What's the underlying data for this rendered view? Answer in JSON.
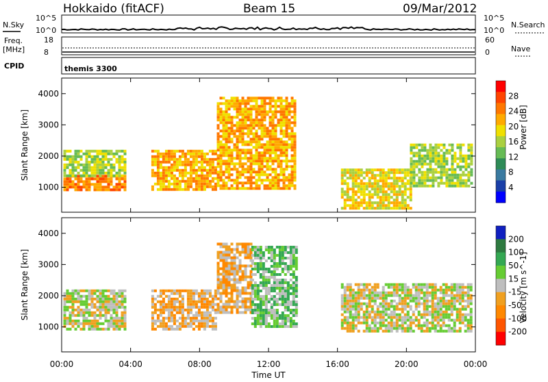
{
  "header": {
    "station": "Hokkaido (fitACF)",
    "beam": "Beam 15",
    "date": "09/Mar/2012"
  },
  "strip": {
    "nsky_label": "N.Sky",
    "nsky_ticks": [
      "10^5",
      "10^0"
    ],
    "nsearch_label": "N.Search",
    "nsearch_ticks": [
      "10^5",
      "10^0"
    ],
    "freq_label_1": "Freq.",
    "freq_label_2": "[MHz]",
    "freq_ticks": [
      "18",
      "8"
    ],
    "nave_label": "Nave",
    "nave_ticks": [
      "60",
      "0"
    ],
    "cpid_label": "CPID",
    "cpid_value": "themis 3300"
  },
  "chart_data": [
    {
      "type": "heatmap",
      "panel": "power",
      "ylabel": "Slant Range [km]",
      "y_ticks": [
        1000,
        2000,
        3000,
        4000
      ],
      "ylim": [
        200,
        4500
      ],
      "colorbar_label": "Power [dB]",
      "colorbar_ticks": [
        4,
        8,
        12,
        16,
        20,
        24,
        28
      ],
      "colorbar_colors": [
        "#0000ff",
        "#1a3fa8",
        "#3a7aa0",
        "#2e8b57",
        "#66bb55",
        "#aad040",
        "#f0e000",
        "#ffaa00",
        "#ff7700",
        "#ff4400",
        "#ff0000"
      ],
      "regions": [
        {
          "t": [
            0.1,
            3.6
          ],
          "r": [
            900,
            1400
          ],
          "level": 24
        },
        {
          "t": [
            0.1,
            3.6
          ],
          "r": [
            1400,
            2200
          ],
          "level": 14
        },
        {
          "t": [
            5.2,
            9.0
          ],
          "r": [
            900,
            2200
          ],
          "level": 22
        },
        {
          "t": [
            9.0,
            13.6
          ],
          "r": [
            1000,
            3900
          ],
          "level": 20
        },
        {
          "t": [
            16.2,
            20.2
          ],
          "r": [
            300,
            1600
          ],
          "level": 18
        },
        {
          "t": [
            20.2,
            23.8
          ],
          "r": [
            1000,
            2400
          ],
          "level": 16
        }
      ]
    },
    {
      "type": "heatmap",
      "panel": "velocity",
      "ylabel": "Slant Range [km]",
      "y_ticks": [
        1000,
        2000,
        3000,
        4000
      ],
      "ylim": [
        200,
        4500
      ],
      "colorbar_label": "Velocity [m s^-1]",
      "colorbar_ticks": [
        200,
        100,
        50,
        15,
        -15,
        -50,
        -100,
        -200
      ],
      "colorbar_colors": [
        "#1020c0",
        "#2e7a40",
        "#34a853",
        "#66cc33",
        "#bebebe",
        "#f0a020",
        "#ff8800",
        "#ff5500",
        "#ff0000"
      ],
      "regions": [
        {
          "t": [
            0.1,
            3.6
          ],
          "r": [
            900,
            2200
          ],
          "level": 0
        },
        {
          "t": [
            5.2,
            9.0
          ],
          "r": [
            900,
            2200
          ],
          "level": -30
        },
        {
          "t": [
            9.0,
            11.0
          ],
          "r": [
            1500,
            3700
          ],
          "level": -40
        },
        {
          "t": [
            11.0,
            13.6
          ],
          "r": [
            1000,
            3600
          ],
          "level": 40
        },
        {
          "t": [
            16.2,
            23.8
          ],
          "r": [
            900,
            2400
          ],
          "level": 0
        }
      ]
    }
  ],
  "x_axis": {
    "label": "Time UT",
    "ticks": [
      "00:00",
      "04:00",
      "08:00",
      "12:00",
      "16:00",
      "20:00",
      "00:00"
    ]
  }
}
